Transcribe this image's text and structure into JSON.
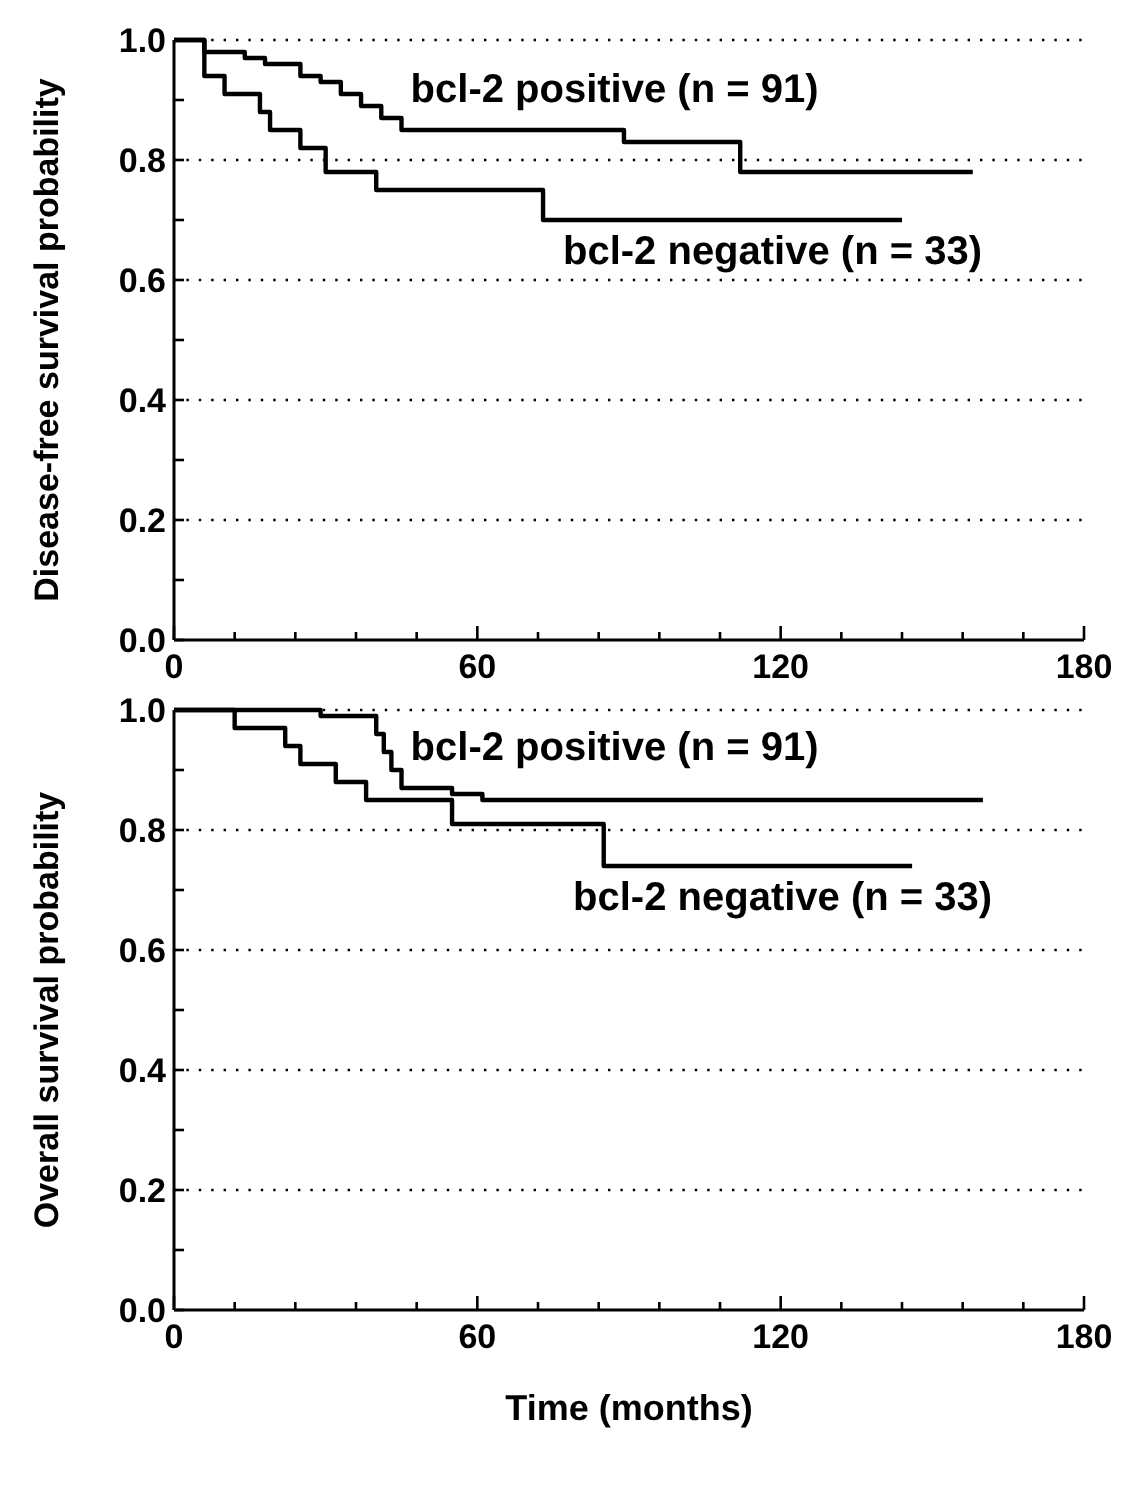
{
  "chart_data": [
    {
      "type": "step",
      "ylabel": "Disease-free survival probability",
      "xlim": [
        0,
        180
      ],
      "ylim": [
        0,
        1
      ],
      "xticks": [
        0,
        {
          "value": 12,
          "label": null
        },
        {
          "value": 24,
          "label": null
        },
        {
          "value": 36,
          "label": null
        },
        {
          "value": 48,
          "label": null
        },
        60,
        {
          "value": 72,
          "label": null
        },
        {
          "value": 84,
          "label": null
        },
        {
          "value": 96,
          "label": null
        },
        {
          "value": 108,
          "label": null
        },
        120,
        {
          "value": 132,
          "label": null
        },
        {
          "value": 144,
          "label": null
        },
        {
          "value": 156,
          "label": null
        },
        {
          "value": 168,
          "label": null
        },
        180
      ],
      "yticks": [
        {
          "value": 0,
          "label": "0.0"
        },
        {
          "value": 0.1,
          "label": null
        },
        0.2,
        {
          "value": 0.3,
          "label": null
        },
        0.4,
        {
          "value": 0.5,
          "label": null
        },
        0.6,
        {
          "value": 0.7,
          "label": null
        },
        0.8,
        {
          "value": 0.9,
          "label": null
        },
        {
          "value": 1,
          "label": "1.0"
        }
      ],
      "grid": "y",
      "line_style": "solid",
      "series": [
        {
          "name": "bcl-2 positive (n = 91)",
          "color": "#000000",
          "x": [
            0,
            6,
            14,
            18,
            25,
            29,
            33,
            37,
            41,
            45,
            89,
            112,
            158
          ],
          "values": [
            1,
            0.98,
            0.97,
            0.96,
            0.94,
            0.93,
            0.91,
            0.89,
            0.87,
            0.85,
            0.83,
            0.78,
            0.78
          ]
        },
        {
          "name": "bcl-2 negative (n = 33)",
          "color": "#000000",
          "x": [
            0,
            6,
            10,
            17,
            19,
            25,
            30,
            40,
            73,
            144
          ],
          "values": [
            1,
            0.94,
            0.91,
            0.88,
            0.85,
            0.82,
            0.78,
            0.75,
            0.7,
            0.7
          ]
        }
      ]
    },
    {
      "type": "step",
      "ylabel": "Overall survival probability",
      "xlabel": "Time (months)",
      "xlim": [
        0,
        180
      ],
      "ylim": [
        0,
        1
      ],
      "xticks": [
        0,
        {
          "value": 12,
          "label": null
        },
        {
          "value": 24,
          "label": null
        },
        {
          "value": 36,
          "label": null
        },
        {
          "value": 48,
          "label": null
        },
        60,
        {
          "value": 72,
          "label": null
        },
        {
          "value": 84,
          "label": null
        },
        {
          "value": 96,
          "label": null
        },
        {
          "value": 108,
          "label": null
        },
        120,
        {
          "value": 132,
          "label": null
        },
        {
          "value": 144,
          "label": null
        },
        {
          "value": 156,
          "label": null
        },
        {
          "value": 168,
          "label": null
        },
        180
      ],
      "yticks": [
        {
          "value": 0,
          "label": "0.0"
        },
        {
          "value": 0.1,
          "label": null
        },
        0.2,
        {
          "value": 0.3,
          "label": null
        },
        0.4,
        {
          "value": 0.5,
          "label": null
        },
        0.6,
        {
          "value": 0.7,
          "label": null
        },
        0.8,
        {
          "value": 0.9,
          "label": null
        },
        {
          "value": 1,
          "label": "1.0"
        }
      ],
      "grid": "y",
      "line_style": "solid",
      "series": [
        {
          "name": "bcl-2 positive (n = 91)",
          "color": "#000000",
          "x": [
            0,
            29,
            40,
            41.5,
            43,
            45,
            55,
            61,
            160
          ],
          "values": [
            1,
            0.99,
            0.96,
            0.93,
            0.9,
            0.87,
            0.86,
            0.85,
            0.85
          ]
        },
        {
          "name": "bcl-2 negative (n = 33)",
          "color": "#000000",
          "x": [
            0,
            12,
            22,
            25,
            32,
            38,
            55,
            85,
            146
          ],
          "values": [
            1,
            0.97,
            0.94,
            0.91,
            0.88,
            0.85,
            0.81,
            0.74,
            0.74
          ]
        }
      ]
    }
  ]
}
